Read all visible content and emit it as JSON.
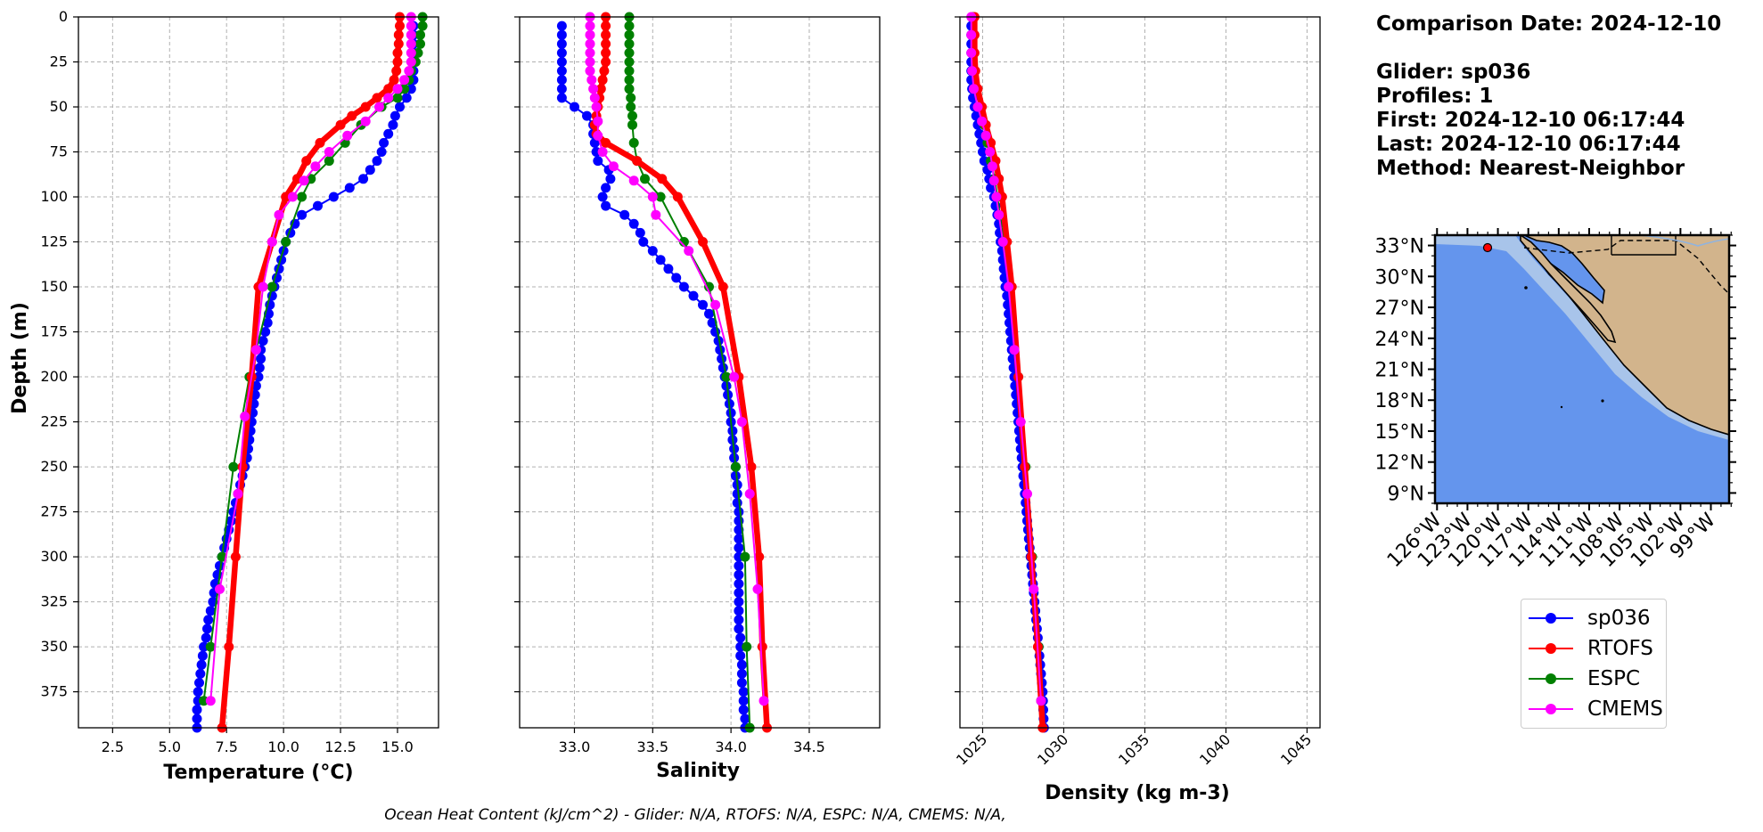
{
  "info": {
    "comparison_date": "Comparison Date: 2024-12-10",
    "glider": "Glider: sp036",
    "profiles": "Profiles: 1",
    "first": "First: 2024-12-10 06:17:44",
    "last": "Last: 2024-12-10 06:17:44",
    "method": "Method: Nearest-Neighbor"
  },
  "footer": "Ocean Heat Content (kJ/cm^2) - Glider: N/A,  RTOFS: N/A,  ESPC: N/A,  CMEMS: N/A,",
  "colors": {
    "glider": "#0000ff",
    "rtofs": "#ff0000",
    "espc": "#008000",
    "cmems": "#ff00ff",
    "glider_edge": "#00ffff",
    "ocean": "#6495ed",
    "shelf": "#a8c4ea",
    "land": "#d2b48c"
  },
  "legend": [
    {
      "label": "sp036",
      "color": "#0000ff"
    },
    {
      "label": "RTOFS",
      "color": "#ff0000"
    },
    {
      "label": "ESPC",
      "color": "#008000"
    },
    {
      "label": "CMEMS",
      "color": "#ff00ff"
    }
  ],
  "map": {
    "lat_ticks": [
      "33°N",
      "30°N",
      "27°N",
      "24°N",
      "21°N",
      "18°N",
      "15°N",
      "12°N",
      "9°N"
    ],
    "lon_ticks": [
      "126°W",
      "123°W",
      "120°W",
      "117°W",
      "114°W",
      "111°W",
      "108°W",
      "105°W",
      "102°W",
      "99°W"
    ],
    "glider_position": {
      "lon": -123.5,
      "lat": 32.6
    }
  },
  "chart_data": [
    {
      "type": "line",
      "xlabel": "Temperature (°C)",
      "ylabel": "Depth (m)",
      "xlim": [
        1.0,
        16.8
      ],
      "ylim": [
        395,
        0
      ],
      "xticks": [
        2.5,
        5.0,
        7.5,
        10.0,
        12.5,
        15.0
      ],
      "xtick_labels": [
        "2.5",
        "5.0",
        "7.5",
        "10.0",
        "12.5",
        "15.0"
      ],
      "yticks": [
        0,
        25,
        50,
        75,
        100,
        125,
        150,
        175,
        200,
        225,
        250,
        275,
        300,
        325,
        350,
        375
      ],
      "ytick_labels": [
        "0",
        "25",
        "50",
        "75",
        "100",
        "125",
        "150",
        "175",
        "200",
        "225",
        "250",
        "275",
        "300",
        "325",
        "350",
        "375"
      ],
      "grid": true,
      "series": [
        {
          "name": "sp036",
          "y": [
            5,
            10,
            15,
            20,
            25,
            30,
            35,
            40,
            45,
            50,
            55,
            60,
            65,
            70,
            75,
            80,
            85,
            90,
            95,
            100,
            105,
            110,
            115,
            120,
            125,
            130,
            135,
            140,
            145,
            150,
            155,
            160,
            165,
            170,
            175,
            180,
            185,
            190,
            195,
            200,
            205,
            210,
            215,
            220,
            225,
            230,
            235,
            240,
            245,
            250,
            255,
            260,
            265,
            270,
            275,
            280,
            285,
            290,
            295,
            300,
            305,
            310,
            315,
            320,
            325,
            330,
            335,
            340,
            345,
            350,
            355,
            360,
            365,
            370,
            375,
            380,
            385,
            390,
            395
          ],
          "x": [
            15.7,
            15.7,
            15.7,
            15.7,
            15.7,
            15.7,
            15.7,
            15.6,
            15.4,
            15.1,
            14.9,
            14.8,
            14.6,
            14.4,
            14.3,
            14.1,
            13.8,
            13.5,
            12.9,
            12.2,
            11.5,
            10.8,
            10.5,
            10.3,
            10.1,
            10.0,
            9.9,
            9.8,
            9.7,
            9.6,
            9.5,
            9.4,
            9.35,
            9.3,
            9.2,
            9.1,
            9.0,
            9.0,
            8.95,
            8.9,
            8.8,
            8.75,
            8.7,
            8.65,
            8.6,
            8.55,
            8.5,
            8.45,
            8.4,
            8.3,
            8.2,
            8.1,
            8.0,
            7.9,
            7.8,
            7.7,
            7.6,
            7.5,
            7.4,
            7.3,
            7.2,
            7.1,
            7.0,
            6.95,
            6.9,
            6.8,
            6.7,
            6.65,
            6.6,
            6.5,
            6.45,
            6.4,
            6.35,
            6.3,
            6.25,
            6.25,
            6.2,
            6.2,
            6.2
          ]
        },
        {
          "name": "RTOFS",
          "y": [
            0,
            5,
            10,
            15,
            20,
            25,
            30,
            35,
            40,
            45,
            50,
            55,
            60,
            70,
            80,
            90,
            100,
            125,
            150,
            200,
            250,
            300,
            350,
            395
          ],
          "x": [
            15.1,
            15.1,
            15.05,
            15.05,
            15.0,
            15.0,
            14.95,
            14.85,
            14.6,
            14.1,
            13.6,
            13.0,
            12.5,
            11.6,
            11.0,
            10.6,
            10.1,
            9.5,
            8.9,
            8.6,
            8.2,
            7.9,
            7.6,
            7.3
          ]
        },
        {
          "name": "ESPC",
          "y": [
            0,
            5,
            10,
            15,
            20,
            25,
            30,
            35,
            40,
            45,
            50,
            60,
            70,
            80,
            90,
            100,
            125,
            150,
            200,
            250,
            300,
            350,
            380
          ],
          "x": [
            16.1,
            16.1,
            16.0,
            16.0,
            15.9,
            15.8,
            15.6,
            15.5,
            15.3,
            15.0,
            14.3,
            13.4,
            12.7,
            12.0,
            11.2,
            10.8,
            10.1,
            9.5,
            8.5,
            7.8,
            7.3,
            6.8,
            6.5
          ]
        },
        {
          "name": "CMEMS",
          "y": [
            0,
            5,
            10,
            15,
            20,
            25,
            30,
            35,
            40,
            45,
            50,
            58,
            66,
            75,
            83,
            91,
            100,
            110,
            125,
            150,
            185,
            222,
            265,
            318,
            380
          ],
          "x": [
            15.6,
            15.6,
            15.6,
            15.6,
            15.6,
            15.6,
            15.5,
            15.3,
            15.0,
            14.6,
            14.2,
            13.6,
            12.8,
            12.0,
            11.4,
            10.9,
            10.4,
            9.8,
            9.5,
            9.1,
            8.8,
            8.3,
            8.0,
            7.2,
            6.8
          ]
        }
      ]
    },
    {
      "type": "line",
      "xlabel": "Salinity",
      "xlim": [
        32.65,
        34.95
      ],
      "ylim": [
        395,
        0
      ],
      "xticks": [
        33.0,
        33.5,
        34.0,
        34.5
      ],
      "xtick_labels": [
        "33.0",
        "33.5",
        "34.0",
        "34.5"
      ],
      "grid": true,
      "series": [
        {
          "name": "sp036",
          "y": [
            5,
            10,
            15,
            20,
            25,
            30,
            35,
            40,
            45,
            50,
            55,
            60,
            65,
            70,
            75,
            80,
            85,
            90,
            95,
            100,
            105,
            110,
            115,
            120,
            125,
            130,
            135,
            140,
            145,
            150,
            155,
            160,
            165,
            170,
            175,
            180,
            185,
            190,
            195,
            200,
            205,
            210,
            215,
            220,
            225,
            230,
            235,
            240,
            245,
            250,
            255,
            260,
            265,
            270,
            275,
            280,
            285,
            290,
            295,
            300,
            305,
            310,
            315,
            320,
            325,
            330,
            335,
            340,
            345,
            350,
            355,
            360,
            365,
            370,
            375,
            380,
            385,
            390,
            395
          ],
          "x": [
            32.92,
            32.92,
            32.92,
            32.92,
            32.92,
            32.92,
            32.92,
            32.92,
            32.92,
            33.0,
            33.08,
            33.12,
            33.12,
            33.13,
            33.14,
            33.15,
            33.22,
            33.23,
            33.2,
            33.18,
            33.2,
            33.32,
            33.38,
            33.42,
            33.44,
            33.5,
            33.55,
            33.6,
            33.65,
            33.7,
            33.76,
            33.82,
            33.86,
            33.88,
            33.9,
            33.92,
            33.93,
            33.94,
            33.95,
            33.96,
            33.97,
            33.98,
            33.99,
            34.0,
            34.0,
            34.01,
            34.01,
            34.02,
            34.02,
            34.03,
            34.03,
            34.04,
            34.04,
            34.04,
            34.05,
            34.05,
            34.05,
            34.05,
            34.05,
            34.05,
            34.05,
            34.05,
            34.05,
            34.05,
            34.05,
            34.05,
            34.05,
            34.05,
            34.06,
            34.06,
            34.06,
            34.07,
            34.07,
            34.07,
            34.08,
            34.08,
            34.08,
            34.09,
            34.09
          ]
        },
        {
          "name": "RTOFS",
          "y": [
            0,
            5,
            10,
            15,
            20,
            25,
            30,
            35,
            40,
            45,
            50,
            55,
            60,
            65,
            70,
            80,
            90,
            100,
            125,
            150,
            200,
            250,
            300,
            350,
            395
          ],
          "x": [
            33.2,
            33.2,
            33.2,
            33.2,
            33.2,
            33.2,
            33.19,
            33.18,
            33.17,
            33.16,
            33.15,
            33.14,
            33.13,
            33.14,
            33.2,
            33.4,
            33.56,
            33.66,
            33.82,
            33.95,
            34.05,
            34.13,
            34.18,
            34.2,
            34.23
          ]
        },
        {
          "name": "ESPC",
          "y": [
            0,
            5,
            10,
            15,
            20,
            25,
            30,
            35,
            40,
            45,
            50,
            55,
            60,
            70,
            80,
            90,
            100,
            125,
            150,
            200,
            250,
            300,
            350,
            395
          ],
          "x": [
            33.35,
            33.35,
            33.35,
            33.35,
            33.35,
            33.35,
            33.35,
            33.35,
            33.35,
            33.36,
            33.36,
            33.37,
            33.37,
            33.38,
            33.4,
            33.45,
            33.55,
            33.7,
            33.86,
            33.97,
            34.03,
            34.09,
            34.1,
            34.12
          ]
        },
        {
          "name": "CMEMS",
          "y": [
            0,
            5,
            10,
            15,
            20,
            25,
            30,
            35,
            40,
            45,
            50,
            58,
            66,
            75,
            83,
            91,
            100,
            110,
            130,
            160,
            200,
            225,
            265,
            318,
            380
          ],
          "x": [
            33.1,
            33.1,
            33.1,
            33.1,
            33.1,
            33.1,
            33.1,
            33.11,
            33.12,
            33.13,
            33.14,
            33.15,
            33.15,
            33.18,
            33.25,
            33.38,
            33.5,
            33.52,
            33.73,
            33.9,
            34.02,
            34.07,
            34.12,
            34.17,
            34.21
          ]
        }
      ]
    },
    {
      "type": "line",
      "xlabel": "Density (kg m-3)",
      "xlim": [
        1023.6,
        1045.8
      ],
      "ylim": [
        395,
        0
      ],
      "xticks": [
        1025,
        1030,
        1035,
        1040,
        1045
      ],
      "xtick_labels": [
        "1025",
        "1030",
        "1035",
        "1040",
        "1045"
      ],
      "grid": true,
      "series": [
        {
          "name": "sp036",
          "y": [
            5,
            10,
            15,
            20,
            25,
            30,
            35,
            40,
            45,
            50,
            55,
            60,
            65,
            70,
            75,
            80,
            85,
            90,
            95,
            100,
            105,
            110,
            115,
            120,
            125,
            130,
            135,
            140,
            145,
            150,
            155,
            160,
            165,
            170,
            175,
            180,
            185,
            190,
            195,
            200,
            205,
            210,
            215,
            220,
            225,
            230,
            235,
            240,
            245,
            250,
            255,
            260,
            265,
            270,
            275,
            280,
            285,
            290,
            295,
            300,
            305,
            310,
            315,
            320,
            325,
            330,
            335,
            340,
            345,
            350,
            355,
            360,
            365,
            370,
            375,
            380,
            385,
            390,
            395
          ],
          "x": [
            1024.3,
            1024.3,
            1024.3,
            1024.3,
            1024.3,
            1024.3,
            1024.3,
            1024.35,
            1024.4,
            1024.5,
            1024.6,
            1024.7,
            1024.8,
            1024.9,
            1025.0,
            1025.1,
            1025.3,
            1025.4,
            1025.5,
            1025.7,
            1025.8,
            1025.9,
            1026.0,
            1026.05,
            1026.1,
            1026.2,
            1026.25,
            1026.3,
            1026.35,
            1026.4,
            1026.5,
            1026.55,
            1026.6,
            1026.65,
            1026.7,
            1026.75,
            1026.8,
            1026.85,
            1026.9,
            1026.95,
            1027.0,
            1027.05,
            1027.1,
            1027.15,
            1027.2,
            1027.25,
            1027.3,
            1027.35,
            1027.4,
            1027.45,
            1027.5,
            1027.55,
            1027.6,
            1027.65,
            1027.7,
            1027.75,
            1027.8,
            1027.85,
            1027.9,
            1027.95,
            1028.0,
            1028.05,
            1028.1,
            1028.15,
            1028.2,
            1028.25,
            1028.3,
            1028.35,
            1028.4,
            1028.45,
            1028.5,
            1028.55,
            1028.6,
            1028.65,
            1028.7,
            1028.72,
            1028.74,
            1028.76,
            1028.78
          ]
        },
        {
          "name": "RTOFS",
          "y": [
            0,
            10,
            20,
            30,
            40,
            50,
            60,
            70,
            80,
            90,
            100,
            125,
            150,
            200,
            250,
            300,
            350,
            395
          ],
          "x": [
            1024.5,
            1024.5,
            1024.5,
            1024.55,
            1024.7,
            1024.95,
            1025.2,
            1025.5,
            1025.8,
            1026.0,
            1026.2,
            1026.5,
            1026.8,
            1027.2,
            1027.6,
            1028.0,
            1028.4,
            1028.7
          ]
        },
        {
          "name": "ESPC",
          "y": [
            0,
            10,
            20,
            30,
            40,
            50,
            60,
            70,
            80,
            90,
            100,
            125,
            150,
            200,
            250,
            300,
            350,
            380
          ],
          "x": [
            1024.4,
            1024.4,
            1024.45,
            1024.5,
            1024.6,
            1024.85,
            1025.1,
            1025.3,
            1025.5,
            1025.75,
            1025.9,
            1026.3,
            1026.7,
            1027.2,
            1027.65,
            1028.05,
            1028.45,
            1028.6
          ]
        },
        {
          "name": "CMEMS",
          "y": [
            0,
            10,
            20,
            30,
            40,
            50,
            58,
            66,
            75,
            83,
            91,
            100,
            110,
            125,
            150,
            185,
            225,
            265,
            318,
            380
          ],
          "x": [
            1024.3,
            1024.3,
            1024.3,
            1024.35,
            1024.45,
            1024.7,
            1024.95,
            1025.2,
            1025.45,
            1025.6,
            1025.7,
            1025.85,
            1026.0,
            1026.25,
            1026.6,
            1026.95,
            1027.35,
            1027.75,
            1028.15,
            1028.6
          ]
        }
      ]
    }
  ]
}
